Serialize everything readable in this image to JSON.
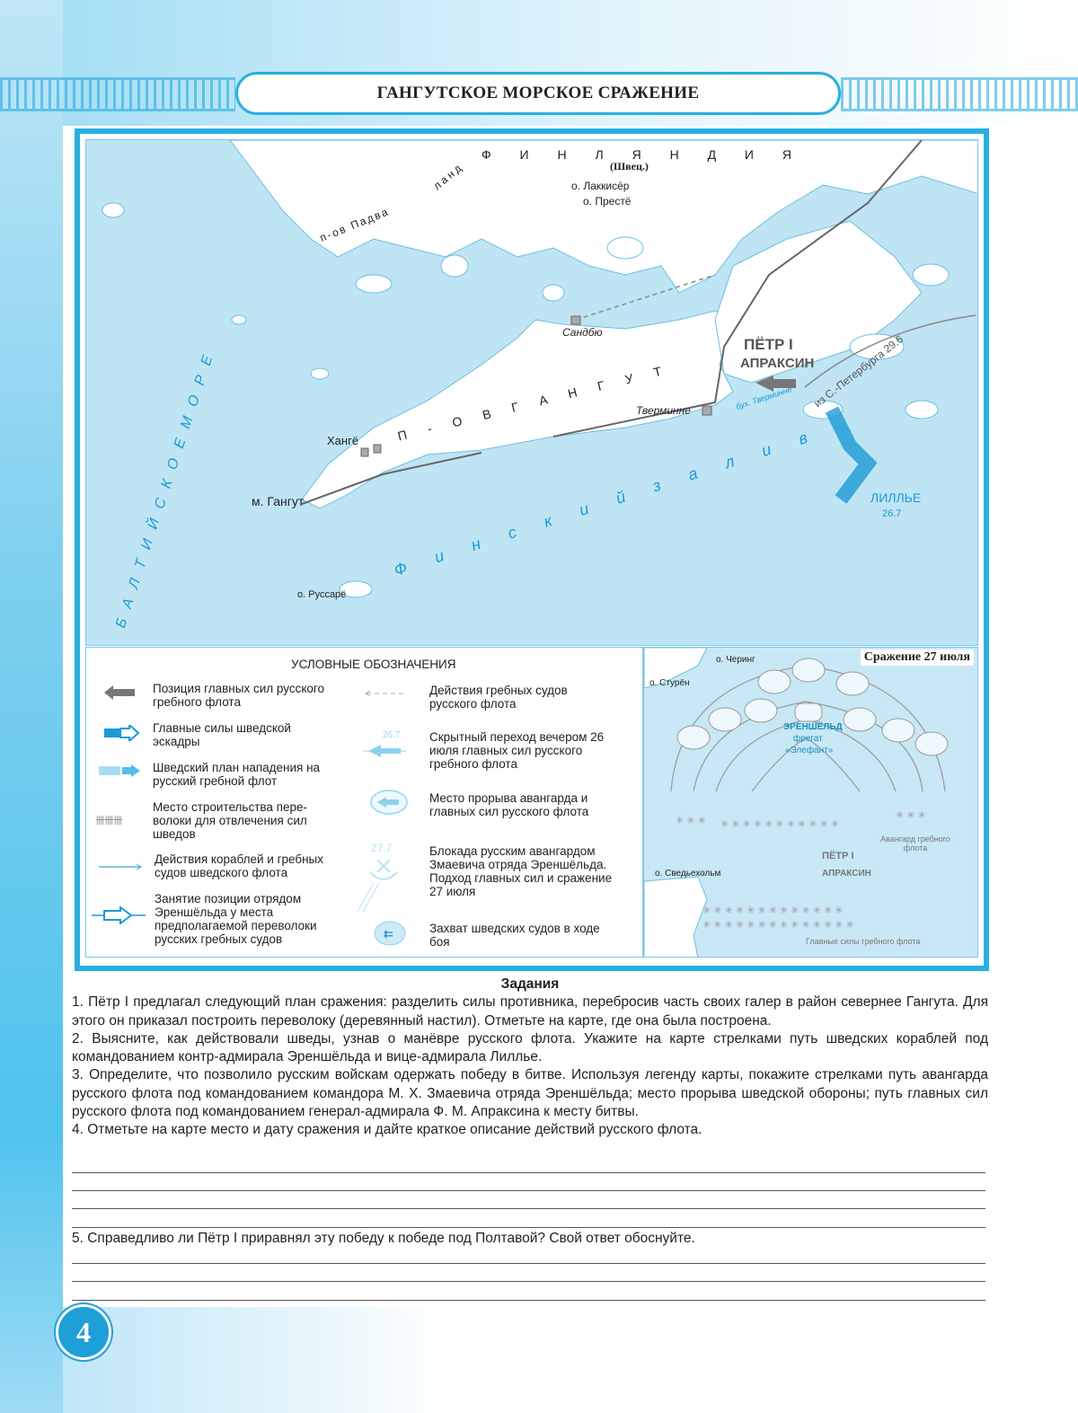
{
  "header": {
    "title": "ГАНГУТСКОЕ МОРСКОЕ СРАЖЕНИЕ"
  },
  "map": {
    "country": "Ф И Н Л Я Н Д И Я",
    "country_note": "(Швец.)",
    "islands": [
      "о. Лаккисёр",
      "о. Престё",
      "о. Руссарё"
    ],
    "peninsula_padva": "п-ов Падва",
    "peninsula_padva_2": "ланд",
    "baltic_sea": "Б А Л Т И Й С К О Е   М О Р Е",
    "sandbu": "Сандбю",
    "peninsula_gangut": "П - О В   Г А Н Г У Т",
    "tverminne": "Тверминне",
    "bay_tverminne": "бух. Тверминне",
    "hange": "Хангё",
    "cape": "м. Гангут",
    "peter": "ПЁТР I",
    "apraksin": "АПРАКСИН",
    "route": "из С.-Петербурга 29.6",
    "lille": "ЛИЛЛЬЕ",
    "lille_date": "26.7",
    "gulf": "Ф и н с к и й   з а л и в"
  },
  "legend": {
    "title": "УСЛОВНЫЕ ОБОЗНАЧЕНИЯ",
    "items": [
      "Позиция главных сил русского гребного флота",
      "Главные силы шведской эскадры",
      "Шведский план нападения на русский гребной флот",
      "Место строительства пере-волоки для отвлечения сил шведов",
      "Действия кораблей и гребных судов шведского флота",
      "Занятие позиции отрядом Эреншёльда у места предполагаемой переволоки русских гребных судов",
      "Действия гребных судов русского флота",
      "Скрытный переход вечером 26 июля главных сил русского гребного флота",
      "Место прорыва авангарда и главных сил русского флота",
      "Блокада русским авангардом Змаевича отряда Эреншёльда. Подход главных сил и сражение 27 июля",
      "Захват шведских судов в ходе боя"
    ],
    "date_26": "26.7",
    "date_27": "27.7"
  },
  "inset": {
    "title": "Сражение 27 июля",
    "chering": "о. Черинг",
    "sturen": "о. Стурён",
    "svedeholm": "о. Сведьехольм",
    "ehrenskiold": "ЭРЕНШЁЛЬД",
    "frigate": "фрегат",
    "elephant": "«Элефант»",
    "peter": "ПЁТР I",
    "apraksin": "АПРАКСИН",
    "vanguard": "Авангард гребного флота",
    "main": "Главные силы гребного флота"
  },
  "tasks": {
    "title": "Задания",
    "items": [
      "1. Пётр I предлагал следующий план сражения: разделить силы противника, перебросив часть своих галер в район севернее Гангута. Для этого он приказал построить переволоку (деревянный настил). Отметьте на карте, где она была построена.",
      "2. Выясните, как действовали шведы, узнав о манёвре русского флота. Укажите на карте стрелками путь шведских кораблей под командованием контр-адмирала Эреншёльда и вице-адмирала Лиллье.",
      "3. Определите, что позволило русским войскам одержать победу в битве. Используя легенду карты, покажите стрелками путь авангарда русского флота под командованием командора М. Х. Змаевича отряда Эреншёльда; место прорыва шведской обороны; путь главных сил русского флота под командованием генерал-адмирала Ф. М. Апраксина к месту битвы.",
      "4. Отметьте на карте место и дату сражения и дайте краткое описание действий русского флота."
    ],
    "q5": "5. Справедливо ли Пётр I приравнял эту победу к победе под Полтавой? Свой ответ обоснуйте."
  },
  "page_number": "4",
  "colors": {
    "accent": "#27b0e0",
    "sea": "#bfe4f4",
    "land": "#ffffff",
    "swedish": "#1a9ad6",
    "russian": "#7a7a7a"
  }
}
